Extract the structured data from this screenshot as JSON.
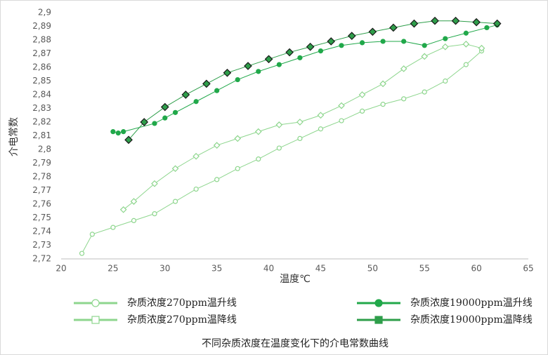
{
  "chart_data": {
    "type": "scatter",
    "title": "不同杂质浓度在温度变化下的介电常数曲线",
    "xlabel": "温度℃",
    "ylabel": "介电常数",
    "xlim": [
      20,
      65
    ],
    "xticks": [
      20,
      25,
      30,
      35,
      40,
      45,
      50,
      55,
      60,
      65
    ],
    "ylim": [
      2.72,
      2.9
    ],
    "yticks": [
      {
        "value": 2.72,
        "label": "2,72"
      },
      {
        "value": 2.73,
        "label": "2,73"
      },
      {
        "value": 2.74,
        "label": "2,74"
      },
      {
        "value": 2.75,
        "label": "2,75"
      },
      {
        "value": 2.76,
        "label": "2,76"
      },
      {
        "value": 2.77,
        "label": "2,77"
      },
      {
        "value": 2.78,
        "label": "2,78"
      },
      {
        "value": 2.79,
        "label": "2,79"
      },
      {
        "value": 2.8,
        "label": "2,8"
      },
      {
        "value": 2.81,
        "label": "2,81"
      },
      {
        "value": 2.82,
        "label": "2,82"
      },
      {
        "value": 2.83,
        "label": "2,83"
      },
      {
        "value": 2.84,
        "label": "2,84"
      },
      {
        "value": 2.85,
        "label": "2,85"
      },
      {
        "value": 2.86,
        "label": "2,86"
      },
      {
        "value": 2.87,
        "label": "2,87"
      },
      {
        "value": 2.88,
        "label": "2,88"
      },
      {
        "value": 2.89,
        "label": "2,89"
      },
      {
        "value": 2.9,
        "label": "2,9"
      }
    ],
    "grid": false,
    "series": [
      {
        "name": "杂质浓度270ppm温升线",
        "color": "#8ed68e",
        "marker": "circle-open",
        "x": [
          22,
          23,
          25,
          27,
          29,
          31,
          33,
          35,
          37,
          39,
          41,
          43,
          45,
          47,
          49,
          51,
          53,
          55,
          57,
          59,
          60.5
        ],
        "values": [
          2.724,
          2.738,
          2.743,
          2.748,
          2.753,
          2.762,
          2.771,
          2.778,
          2.786,
          2.793,
          2.801,
          2.808,
          2.815,
          2.821,
          2.828,
          2.833,
          2.837,
          2.842,
          2.85,
          2.862,
          2.872
        ]
      },
      {
        "name": "杂质浓度270ppm温降线",
        "color": "#8ed68e",
        "marker": "diamond-open",
        "x": [
          60.5,
          59,
          57,
          55,
          53,
          51,
          49,
          47,
          45,
          43,
          41,
          39,
          37,
          35,
          33,
          31,
          29,
          27,
          26
        ],
        "values": [
          2.874,
          2.877,
          2.875,
          2.868,
          2.859,
          2.848,
          2.84,
          2.832,
          2.825,
          2.82,
          2.818,
          2.813,
          2.808,
          2.803,
          2.795,
          2.786,
          2.775,
          2.762,
          2.756
        ]
      },
      {
        "name": "杂质浓度19000ppm温升线",
        "color": "#21a84a",
        "marker": "circle",
        "x": [
          25,
          25.5,
          26,
          29,
          30,
          31,
          33,
          35,
          37,
          39,
          41,
          43,
          45,
          47,
          49,
          51,
          53,
          55,
          57,
          59,
          61,
          62
        ],
        "values": [
          2.813,
          2.812,
          2.813,
          2.819,
          2.823,
          2.827,
          2.835,
          2.843,
          2.851,
          2.857,
          2.862,
          2.867,
          2.872,
          2.876,
          2.878,
          2.879,
          2.879,
          2.876,
          2.881,
          2.885,
          2.889,
          2.891
        ]
      },
      {
        "name": "杂质浓度19000ppm温降线",
        "color": "#2e9e4a",
        "marker": "diamond",
        "x": [
          62,
          60,
          58,
          56,
          54,
          52,
          50,
          48,
          46,
          44,
          42,
          40,
          38,
          36,
          34,
          32,
          30,
          28,
          26.5
        ],
        "values": [
          2.892,
          2.893,
          2.894,
          2.894,
          2.892,
          2.889,
          2.886,
          2.883,
          2.879,
          2.875,
          2.871,
          2.866,
          2.861,
          2.856,
          2.848,
          2.84,
          2.831,
          2.82,
          2.807
        ]
      }
    ]
  }
}
